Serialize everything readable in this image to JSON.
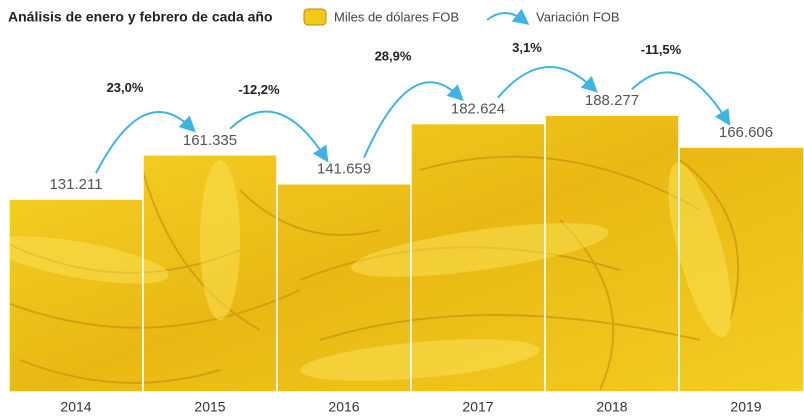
{
  "chart_data": {
    "type": "bar",
    "title": "Análisis de enero y febrero de cada año",
    "categories": [
      "2014",
      "2015",
      "2016",
      "2017",
      "2018",
      "2019"
    ],
    "series": [
      {
        "name": "Miles de dólares FOB",
        "color": "#f2c919",
        "values": [
          131211,
          161335,
          141659,
          182624,
          188277,
          166606
        ],
        "value_labels": [
          "131.211",
          "161.335",
          "141.659",
          "182.624",
          "188.277",
          "166.606"
        ]
      },
      {
        "name": "Variación FOB",
        "color": "#3fb4e0",
        "values": [
          null,
          23.0,
          -12.2,
          28.9,
          3.1,
          -11.5
        ],
        "value_labels": [
          null,
          "23,0%",
          "-12,2%",
          "28,9%",
          "3,1%",
          "-11,5%"
        ]
      }
    ]
  }
}
